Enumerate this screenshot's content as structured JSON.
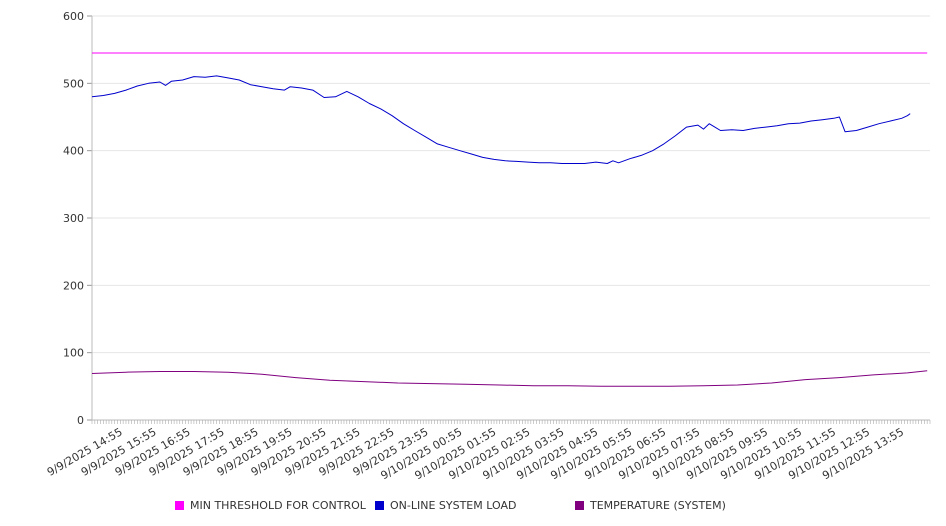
{
  "chart_data": {
    "type": "line",
    "title": "",
    "xlabel": "",
    "ylabel": "",
    "ylim": [
      0,
      600
    ],
    "y_ticks": [
      0,
      100,
      200,
      300,
      400,
      500,
      600
    ],
    "x_tick_labels": [
      "9/9/2025 14:55",
      "9/9/2025 15:55",
      "9/9/2025 16:55",
      "9/9/2025 17:55",
      "9/9/2025 18:55",
      "9/9/2025 19:55",
      "9/9/2025 20:55",
      "9/9/2025 21:55",
      "9/9/2025 22:55",
      "9/9/2025 23:55",
      "9/10/2025 00:55",
      "9/10/2025 01:55",
      "9/10/2025 02:55",
      "9/10/2025 03:55",
      "9/10/2025 04:55",
      "9/10/2025 05:55",
      "9/10/2025 06:55",
      "9/10/2025 07:55",
      "9/10/2025 08:55",
      "9/10/2025 09:55",
      "9/10/2025 10:55",
      "9/10/2025 11:55",
      "9/10/2025 12:55",
      "9/10/2025 13:55"
    ],
    "grid": "horizontal",
    "legend_position": "bottom",
    "series": [
      {
        "name": "MIN THRESHOLD FOR CONTROL",
        "color": "#ff00ff",
        "points": [
          [
            "9/9/2025 14:00",
            545
          ],
          [
            "9/10/2025 14:35",
            545
          ]
        ]
      },
      {
        "name": "ON-LINE SYSTEM LOAD",
        "color": "#0000cc",
        "points": [
          [
            "9/9/2025 14:00",
            480
          ],
          [
            "9/9/2025 14:20",
            482
          ],
          [
            "9/9/2025 14:40",
            485
          ],
          [
            "9/9/2025 15:00",
            490
          ],
          [
            "9/9/2025 15:20",
            496
          ],
          [
            "9/9/2025 15:40",
            500
          ],
          [
            "9/9/2025 16:00",
            502
          ],
          [
            "9/9/2025 16:10",
            497
          ],
          [
            "9/9/2025 16:20",
            503
          ],
          [
            "9/9/2025 16:40",
            505
          ],
          [
            "9/9/2025 17:00",
            510
          ],
          [
            "9/9/2025 17:20",
            509
          ],
          [
            "9/9/2025 17:40",
            511
          ],
          [
            "9/9/2025 18:00",
            508
          ],
          [
            "9/9/2025 18:20",
            505
          ],
          [
            "9/9/2025 18:40",
            498
          ],
          [
            "9/9/2025 19:00",
            495
          ],
          [
            "9/9/2025 19:20",
            492
          ],
          [
            "9/9/2025 19:40",
            490
          ],
          [
            "9/9/2025 19:50",
            495
          ],
          [
            "9/9/2025 20:10",
            493
          ],
          [
            "9/9/2025 20:30",
            490
          ],
          [
            "9/9/2025 20:50",
            479
          ],
          [
            "9/9/2025 21:10",
            480
          ],
          [
            "9/9/2025 21:30",
            488
          ],
          [
            "9/9/2025 21:50",
            480
          ],
          [
            "9/9/2025 22:10",
            470
          ],
          [
            "9/9/2025 22:30",
            462
          ],
          [
            "9/9/2025 22:50",
            452
          ],
          [
            "9/9/2025 23:10",
            440
          ],
          [
            "9/9/2025 23:30",
            430
          ],
          [
            "9/9/2025 23:50",
            420
          ],
          [
            "9/10/2025 00:10",
            410
          ],
          [
            "9/10/2025 00:30",
            405
          ],
          [
            "9/10/2025 00:50",
            400
          ],
          [
            "9/10/2025 01:10",
            395
          ],
          [
            "9/10/2025 01:30",
            390
          ],
          [
            "9/10/2025 01:50",
            387
          ],
          [
            "9/10/2025 02:10",
            385
          ],
          [
            "9/10/2025 02:30",
            384
          ],
          [
            "9/10/2025 02:50",
            383
          ],
          [
            "9/10/2025 03:10",
            382
          ],
          [
            "9/10/2025 03:30",
            382
          ],
          [
            "9/10/2025 03:50",
            381
          ],
          [
            "9/10/2025 04:10",
            381
          ],
          [
            "9/10/2025 04:30",
            381
          ],
          [
            "9/10/2025 04:50",
            383
          ],
          [
            "9/10/2025 05:10",
            381
          ],
          [
            "9/10/2025 05:20",
            385
          ],
          [
            "9/10/2025 05:30",
            382
          ],
          [
            "9/10/2025 05:50",
            388
          ],
          [
            "9/10/2025 06:10",
            393
          ],
          [
            "9/10/2025 06:30",
            400
          ],
          [
            "9/10/2025 06:50",
            410
          ],
          [
            "9/10/2025 07:10",
            422
          ],
          [
            "9/10/2025 07:30",
            435
          ],
          [
            "9/10/2025 07:50",
            438
          ],
          [
            "9/10/2025 08:00",
            432
          ],
          [
            "9/10/2025 08:10",
            440
          ],
          [
            "9/10/2025 08:30",
            430
          ],
          [
            "9/10/2025 08:50",
            431
          ],
          [
            "9/10/2025 09:10",
            430
          ],
          [
            "9/10/2025 09:30",
            433
          ],
          [
            "9/10/2025 09:50",
            435
          ],
          [
            "9/10/2025 10:10",
            437
          ],
          [
            "9/10/2025 10:30",
            440
          ],
          [
            "9/10/2025 10:50",
            441
          ],
          [
            "9/10/2025 11:10",
            444
          ],
          [
            "9/10/2025 11:30",
            446
          ],
          [
            "9/10/2025 11:50",
            448
          ],
          [
            "9/10/2025 12:00",
            450
          ],
          [
            "9/10/2025 12:10",
            428
          ],
          [
            "9/10/2025 12:30",
            430
          ],
          [
            "9/10/2025 12:50",
            435
          ],
          [
            "9/10/2025 13:10",
            440
          ],
          [
            "9/10/2025 13:30",
            444
          ],
          [
            "9/10/2025 13:50",
            448
          ],
          [
            "9/10/2025 14:00",
            452
          ],
          [
            "9/10/2025 14:05",
            455
          ]
        ]
      },
      {
        "name": "TEMPERATURE (SYSTEM)",
        "color": "#800080",
        "points": [
          [
            "9/9/2025 14:00",
            69
          ],
          [
            "9/9/2025 15:00",
            71
          ],
          [
            "9/9/2025 16:00",
            72
          ],
          [
            "9/9/2025 17:00",
            72
          ],
          [
            "9/9/2025 18:00",
            71
          ],
          [
            "9/9/2025 19:00",
            68
          ],
          [
            "9/9/2025 20:00",
            63
          ],
          [
            "9/9/2025 21:00",
            59
          ],
          [
            "9/9/2025 22:00",
            57
          ],
          [
            "9/9/2025 23:00",
            55
          ],
          [
            "9/10/2025 00:00",
            54
          ],
          [
            "9/10/2025 01:00",
            53
          ],
          [
            "9/10/2025 02:00",
            52
          ],
          [
            "9/10/2025 03:00",
            51
          ],
          [
            "9/10/2025 04:00",
            51
          ],
          [
            "9/10/2025 05:00",
            50
          ],
          [
            "9/10/2025 06:00",
            50
          ],
          [
            "9/10/2025 07:00",
            50
          ],
          [
            "9/10/2025 08:00",
            51
          ],
          [
            "9/10/2025 09:00",
            52
          ],
          [
            "9/10/2025 10:00",
            55
          ],
          [
            "9/10/2025 11:00",
            60
          ],
          [
            "9/10/2025 12:00",
            63
          ],
          [
            "9/10/2025 13:00",
            67
          ],
          [
            "9/10/2025 14:00",
            70
          ],
          [
            "9/10/2025 14:35",
            73
          ]
        ]
      }
    ]
  }
}
